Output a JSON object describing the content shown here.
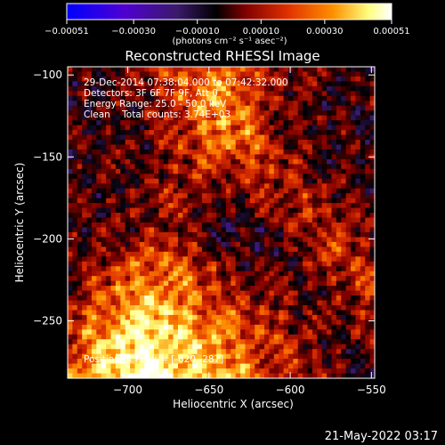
{
  "chart_data": {
    "type": "heatmap",
    "title": "Reconstructed RHESSI Image",
    "xlabel": "Heliocentric X (arcsec)",
    "ylabel": "Heliocentric Y (arcsec)",
    "xlim": [
      -737,
      -548
    ],
    "ylim": [
      -285,
      -95
    ],
    "x_ticks": [
      -700,
      -650,
      -600,
      -550
    ],
    "x_tick_labels": [
      "−700",
      "−650",
      "−600",
      "−550"
    ],
    "y_ticks": [
      -100,
      -150,
      -200,
      -250
    ],
    "y_tick_labels": [
      "−100",
      "−150",
      "−200",
      "−250"
    ],
    "colorbar": {
      "range": [
        -0.00051,
        0.00051
      ],
      "ticks": [
        -0.00051,
        -0.0003,
        -0.0001,
        0.0001,
        0.0003,
        0.00051
      ],
      "tick_labels": [
        "−0.00051",
        "−0.00030",
        "−0.00010",
        "0.00010",
        "0.00030",
        "0.00051"
      ],
      "unit_label": "(photons cm⁻² s⁻¹ asec⁻²)",
      "colormap": [
        "#0000ff",
        "#5000d0",
        "#3a1a6a",
        "#000000",
        "#800000",
        "#e03000",
        "#ff9000",
        "#ffff80",
        "#ffffff"
      ]
    },
    "annotations": {
      "time_range": "29-Dec-2014 07:38:04.000 to 07:42:32.000",
      "detectors": "Detectors: 3F 6F 7F 9F, Att 0",
      "energy_range": "Energy Range: 25.0 - 50.0 keV",
      "clean_counts": "Clean    Total counts: 3.74E+03",
      "peak": "Position of Peak = [-620,-287]"
    },
    "peak_position": [
      -620,
      -287
    ],
    "grid": false,
    "legend": "none"
  },
  "footer": {
    "timestamp": "21-May-2022 03:17"
  }
}
